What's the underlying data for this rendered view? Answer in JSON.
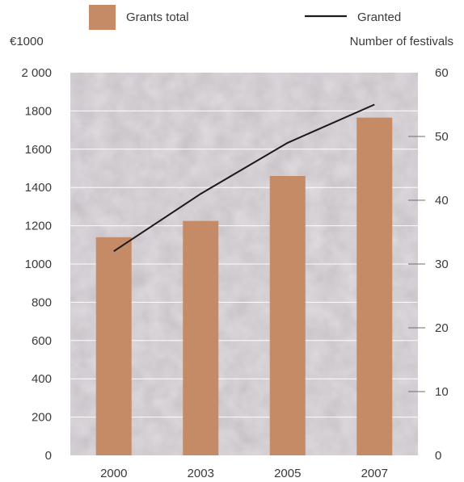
{
  "chart_data": {
    "type": "bar",
    "categories": [
      "2000",
      "2003",
      "2005",
      "2007"
    ],
    "series": [
      {
        "name": "Grants total",
        "type": "bar",
        "axis": "left",
        "color": "#c58a66",
        "values": [
          1140,
          1225,
          1460,
          1765
        ]
      },
      {
        "name": "Granted",
        "type": "line",
        "axis": "right",
        "color": "#1a1a1a",
        "values": [
          32,
          41,
          49,
          55
        ]
      }
    ],
    "left_axis": {
      "label": "€1000",
      "ylim": [
        0,
        2000
      ],
      "ticks": [
        0,
        200,
        400,
        600,
        800,
        1000,
        1200,
        1400,
        1600,
        1800,
        2000
      ],
      "tick_labels": [
        "0",
        "200",
        "400",
        "600",
        "800",
        "1000",
        "1200",
        "1400",
        "1600",
        "1800",
        "2 000"
      ]
    },
    "right_axis": {
      "label": "Number of festivals",
      "ylim": [
        0,
        60
      ],
      "ticks": [
        0,
        10,
        20,
        30,
        40,
        50,
        60
      ],
      "tick_labels": [
        "0",
        "10",
        "20",
        "30",
        "40",
        "50",
        "60"
      ]
    },
    "grid": true,
    "legend": "top",
    "background_color": "#c9c3c8"
  }
}
